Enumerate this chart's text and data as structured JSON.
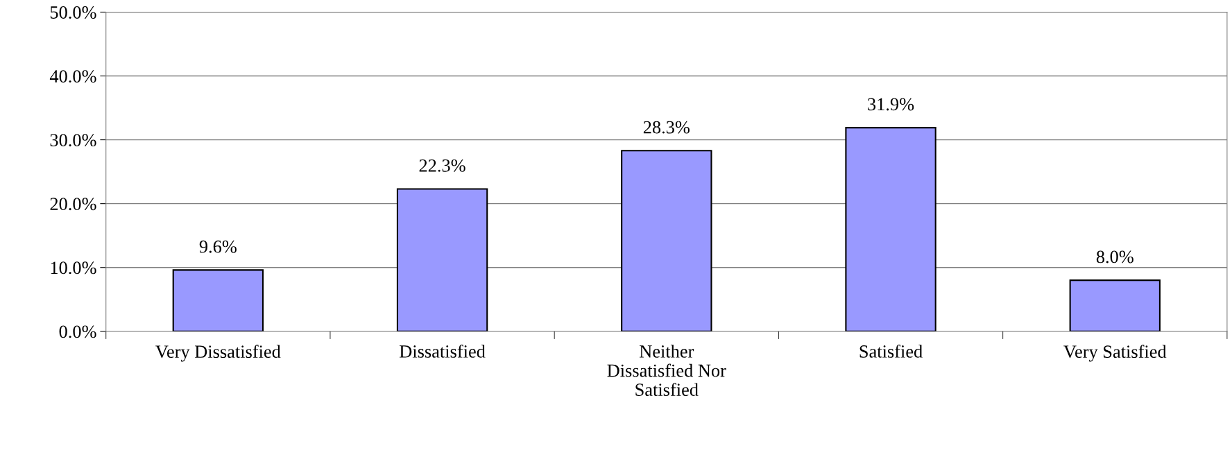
{
  "chart_data": {
    "type": "bar",
    "categories": [
      "Very Dissatisfied",
      "Dissatisfied",
      "Neither\nDissatisfied Nor\nSatisfied",
      "Satisfied",
      "Very Satisfied"
    ],
    "values": [
      9.6,
      22.3,
      28.3,
      31.9,
      8.0
    ],
    "value_labels": [
      "9.6%",
      "22.3%",
      "28.3%",
      "31.9%",
      "8.0%"
    ],
    "color": "#9999ff",
    "ylim": [
      0,
      50
    ],
    "yticks": [
      {
        "value": 0,
        "label": "0.0%"
      },
      {
        "value": 10,
        "label": "10.0%"
      },
      {
        "value": 20,
        "label": "20.0%"
      },
      {
        "value": 30,
        "label": "30.0%"
      },
      {
        "value": 40,
        "label": "40.0%"
      },
      {
        "value": 50,
        "label": "50.0%"
      }
    ],
    "grid": "y",
    "legend": false
  }
}
